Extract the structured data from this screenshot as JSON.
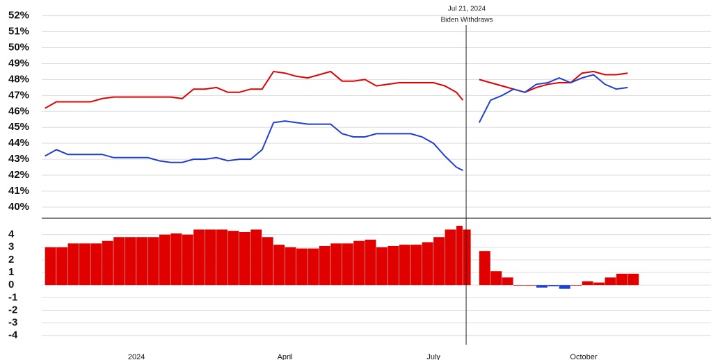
{
  "chart_data": [
    {
      "type": "line",
      "x": [
        -56,
        -49,
        -42,
        -35,
        -28,
        -21,
        -14,
        -7,
        0,
        7,
        14,
        21,
        28,
        35,
        42,
        49,
        56,
        63,
        70,
        77,
        84,
        91,
        98,
        105,
        112,
        119,
        126,
        133,
        140,
        147,
        154,
        161,
        168,
        175,
        182,
        189,
        196,
        200,
        205,
        210,
        217,
        224,
        231,
        238,
        245,
        252,
        259,
        266,
        273,
        280,
        287,
        294,
        301
      ],
      "xlim": [
        -58,
        352
      ],
      "xticks": [
        {
          "value": 0,
          "label": "2024"
        },
        {
          "value": 91,
          "label": "April"
        },
        {
          "value": 182,
          "label": "July"
        },
        {
          "value": 274,
          "label": "October"
        }
      ],
      "ylim": [
        39.3,
        52.9
      ],
      "yticks": [
        {
          "value": 40,
          "label": "40%"
        },
        {
          "value": 41,
          "label": "41%"
        },
        {
          "value": 42,
          "label": "42%"
        },
        {
          "value": 43,
          "label": "43%"
        },
        {
          "value": 44,
          "label": "44%"
        },
        {
          "value": 45,
          "label": "45%"
        },
        {
          "value": 46,
          "label": "46%"
        },
        {
          "value": 47,
          "label": "47%"
        },
        {
          "value": 48,
          "label": "48%"
        },
        {
          "value": 49,
          "label": "49%"
        },
        {
          "value": 50,
          "label": "50%"
        },
        {
          "value": 51,
          "label": "51%"
        },
        {
          "value": 52,
          "label": "52%"
        }
      ],
      "grid": true,
      "series": [
        {
          "color": "#e00000",
          "values": [
            46.2,
            46.6,
            46.6,
            46.6,
            46.6,
            46.8,
            46.9,
            46.9,
            46.9,
            46.9,
            46.9,
            46.9,
            46.8,
            47.4,
            47.4,
            47.5,
            47.2,
            47.2,
            47.4,
            47.4,
            48.5,
            48.4,
            48.2,
            48.1,
            48.3,
            48.5,
            47.9,
            47.9,
            48.0,
            47.6,
            47.7,
            47.8,
            47.8,
            47.8,
            47.8,
            47.6,
            47.2,
            46.7,
            null,
            48.0,
            47.8,
            47.6,
            47.4,
            47.2,
            47.5,
            47.7,
            47.8,
            47.8,
            48.4,
            48.5,
            48.3,
            48.3,
            48.4
          ]
        },
        {
          "color": "#1f3fd0",
          "values": [
            43.2,
            43.6,
            43.3,
            43.3,
            43.3,
            43.3,
            43.1,
            43.1,
            43.1,
            43.1,
            42.9,
            42.8,
            42.8,
            43.0,
            43.0,
            43.1,
            42.9,
            43.0,
            43.0,
            43.6,
            45.3,
            45.4,
            45.3,
            45.2,
            45.2,
            45.2,
            44.6,
            44.4,
            44.4,
            44.6,
            44.6,
            44.6,
            44.6,
            44.4,
            44.0,
            43.2,
            42.5,
            42.3,
            null,
            45.3,
            46.7,
            47.0,
            47.4,
            47.2,
            47.7,
            47.8,
            48.1,
            47.8,
            48.1,
            48.3,
            47.7,
            47.4,
            47.5
          ]
        }
      ],
      "annotation": {
        "x": 202,
        "date": "Jul 21, 2024",
        "text": "Biden Withdraws"
      }
    },
    {
      "type": "bar",
      "x": [
        -56,
        -49,
        -42,
        -35,
        -28,
        -21,
        -14,
        -7,
        0,
        7,
        14,
        21,
        28,
        35,
        42,
        49,
        56,
        63,
        70,
        77,
        84,
        91,
        98,
        105,
        112,
        119,
        126,
        133,
        140,
        147,
        154,
        161,
        168,
        175,
        182,
        189,
        196,
        200,
        205,
        210,
        217,
        224,
        231,
        238,
        245,
        252,
        259,
        266,
        273,
        280,
        287,
        294,
        301
      ],
      "xlim": [
        -58,
        352
      ],
      "values": [
        3.0,
        3.0,
        3.3,
        3.3,
        3.3,
        3.5,
        3.8,
        3.8,
        3.8,
        3.8,
        4.0,
        4.1,
        4.0,
        4.4,
        4.4,
        4.4,
        4.3,
        4.2,
        4.4,
        3.8,
        3.2,
        3.0,
        2.9,
        2.9,
        3.1,
        3.3,
        3.3,
        3.5,
        3.6,
        3.0,
        3.1,
        3.2,
        3.2,
        3.4,
        3.8,
        4.4,
        4.7,
        4.4,
        null,
        2.7,
        1.1,
        0.6,
        0.0,
        0.0,
        -0.2,
        -0.1,
        -0.3,
        0.0,
        0.3,
        0.2,
        0.6,
        0.9,
        0.9
      ],
      "ylim": [
        -4.4,
        5.3
      ],
      "yticks": [
        4,
        3,
        2,
        1,
        0,
        -1,
        -2,
        -3,
        -4
      ],
      "grid": true,
      "positive_color": "#e00000",
      "negative_color": "#1f3fd0"
    }
  ]
}
